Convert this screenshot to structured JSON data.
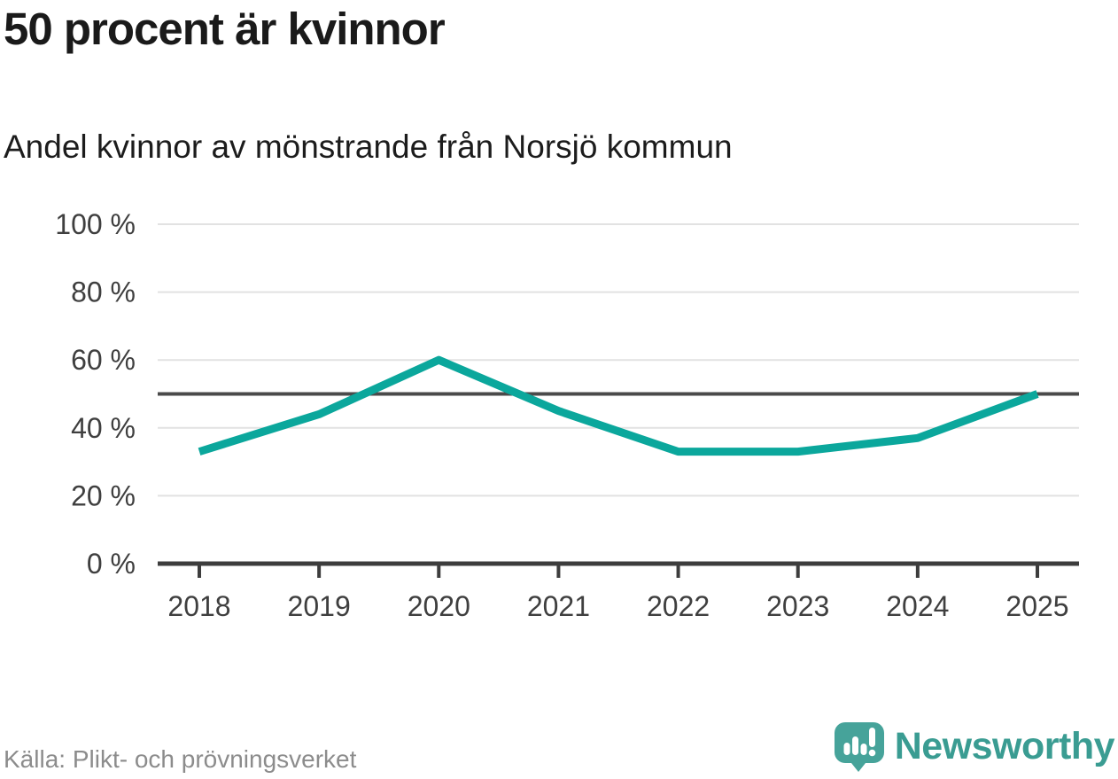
{
  "header": {
    "title": "50 procent är kvinnor",
    "subtitle": "Andel kvinnor av mönstrande från Norsjö kommun"
  },
  "chart_data": {
    "type": "line",
    "x": [
      2018,
      2019,
      2020,
      2021,
      2022,
      2023,
      2024,
      2025
    ],
    "x_tick_labels": [
      "2018",
      "2019",
      "2020",
      "2021",
      "2022",
      "2023",
      "2024",
      "2025"
    ],
    "series": [
      {
        "name": "Andel kvinnor av mönstrande",
        "values": [
          33,
          44,
          60,
          45,
          33,
          33,
          37,
          50
        ]
      }
    ],
    "ylim": [
      0,
      100
    ],
    "y_ticks": [
      0,
      20,
      40,
      60,
      80,
      100
    ],
    "y_tick_labels": [
      "0 %",
      "20 %",
      "40 %",
      "60 %",
      "80 %",
      "100 %"
    ],
    "reference_line": 50,
    "grid": true,
    "legend_position": "none",
    "line_color": "#0ba79c",
    "reference_line_color": "#4a4a4a",
    "gridline_color": "#e2e2e2",
    "axis_color": "#3d3d3d",
    "tick_label_color": "#3f3f3f"
  },
  "footer": {
    "source": "Källa: Plikt- och prövningsverket",
    "brand": "Newsworthy",
    "brand_color": "#3a9c92",
    "logo_color": "#46a39a",
    "logo_icon": "bar-chart-speech-bubble"
  }
}
